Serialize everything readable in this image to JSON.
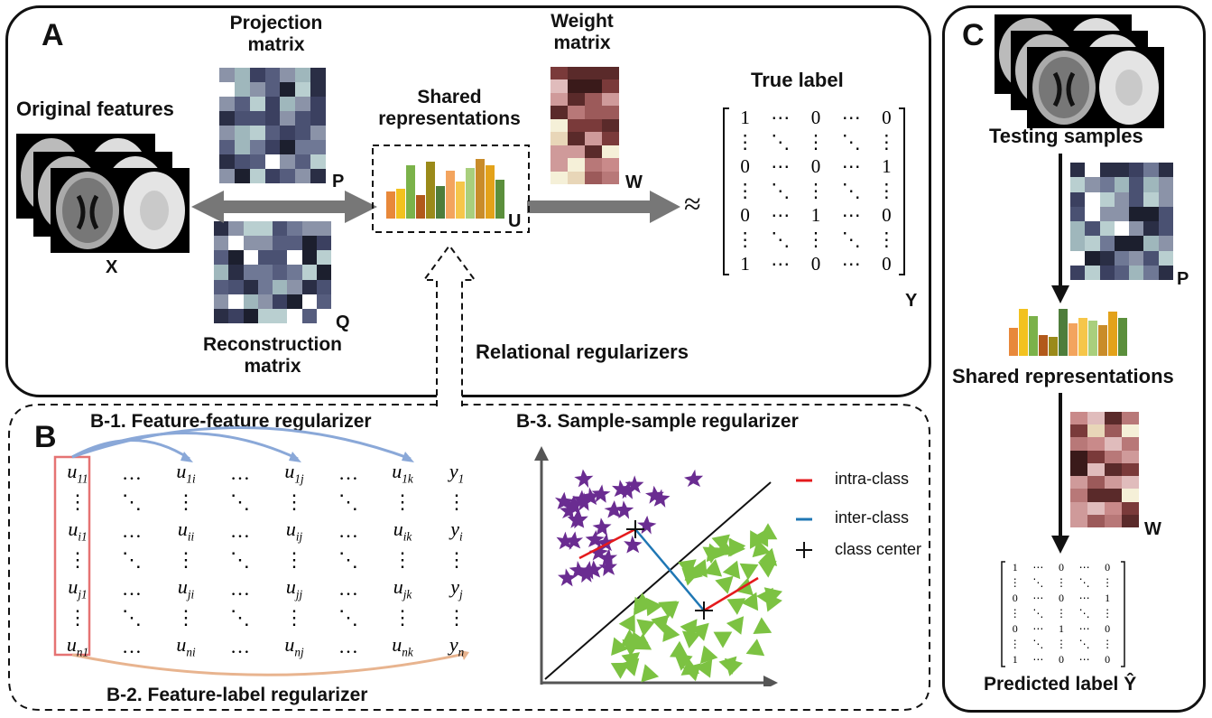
{
  "panels": {
    "a_letter": "A",
    "b_letter": "B",
    "c_letter": "C"
  },
  "panel_a": {
    "original_features": "Original features",
    "x_label": "X",
    "projection_matrix_line1": "Projection",
    "projection_matrix_line2": "matrix",
    "p_label": "P",
    "reconstruction_line1": "Reconstruction",
    "reconstruction_line2": "matrix",
    "q_label": "Q",
    "shared_line1": "Shared",
    "shared_line2": "representations",
    "u_label": "U",
    "weight_line1": "Weight",
    "weight_line2": "matrix",
    "w_label": "W",
    "approx": "≈",
    "true_label": "True label",
    "y_label": "Y",
    "relational": "Relational regularizers",
    "matrix_y": [
      [
        "1",
        "⋯",
        "0",
        "⋯",
        "0"
      ],
      [
        "⋮",
        "⋱",
        "⋮",
        "⋱",
        "⋮"
      ],
      [
        "0",
        "⋯",
        "0",
        "⋯",
        "1"
      ],
      [
        "⋮",
        "⋱",
        "⋮",
        "⋱",
        "⋮"
      ],
      [
        "0",
        "⋯",
        "1",
        "⋯",
        "0"
      ],
      [
        "⋮",
        "⋱",
        "⋮",
        "⋱",
        "⋮"
      ],
      [
        "1",
        "⋯",
        "0",
        "⋯",
        "0"
      ]
    ]
  },
  "panel_b": {
    "b1_title": "B-1. Feature-feature regularizer",
    "b2_title": "B-2. Feature-label regularizer",
    "b3_title": "B-3. Sample-sample regularizer",
    "matrix_u": [
      [
        "u11",
        "…",
        "u1i",
        "…",
        "u1j",
        "…",
        "u1k",
        "y1"
      ],
      [
        "⋮",
        "⋱",
        "⋮",
        "⋱",
        "⋮",
        "⋱",
        "⋮",
        "⋮"
      ],
      [
        "ui1",
        "…",
        "uii",
        "…",
        "uij",
        "…",
        "uik",
        "yi"
      ],
      [
        "⋮",
        "⋱",
        "⋮",
        "⋱",
        "⋮",
        "⋱",
        "⋮",
        "⋮"
      ],
      [
        "uj1",
        "…",
        "uji",
        "…",
        "ujj",
        "…",
        "ujk",
        "yj"
      ],
      [
        "⋮",
        "⋱",
        "⋮",
        "⋱",
        "⋮",
        "⋱",
        "⋮",
        "⋮"
      ],
      [
        "un1",
        "…",
        "uni",
        "…",
        "unj",
        "…",
        "unk",
        "yn"
      ]
    ],
    "legend": {
      "intra": "intra-class",
      "inter": "inter-class",
      "center": "class center"
    }
  },
  "panel_c": {
    "testing_samples": "Testing samples",
    "p_label": "P",
    "shared": "Shared representations",
    "w_label": "W",
    "predicted": "Predicted label Ŷ",
    "matrix_yhat": [
      [
        "1",
        "⋯",
        "0",
        "⋯",
        "0"
      ],
      [
        "⋮",
        "⋱",
        "⋮",
        "⋱",
        "⋮"
      ],
      [
        "0",
        "⋯",
        "0",
        "⋯",
        "1"
      ],
      [
        "⋮",
        "⋱",
        "⋮",
        "⋱",
        "⋮"
      ],
      [
        "0",
        "⋯",
        "1",
        "⋯",
        "0"
      ],
      [
        "⋮",
        "⋱",
        "⋮",
        "⋱",
        "⋮"
      ],
      [
        "1",
        "⋯",
        "0",
        "⋯",
        "0"
      ]
    ]
  },
  "colors": {
    "bars": [
      "#e8883a",
      "#f2c21f",
      "#7bb24a",
      "#b2591b",
      "#9a8a1a",
      "#4e7d3b",
      "#f3a45e",
      "#f6c64a",
      "#a9cf7d",
      "#c98c2a",
      "#e3a21a",
      "#5b8f3c"
    ],
    "intra_class": "#e41a1c",
    "inter_class": "#1f77b4",
    "star": "#6a2c91",
    "triangle": "#7cc242",
    "b1_arrow": "#8aa8d8",
    "b2_arrow": "#e8b48f",
    "highlight_box": "#e57373"
  }
}
